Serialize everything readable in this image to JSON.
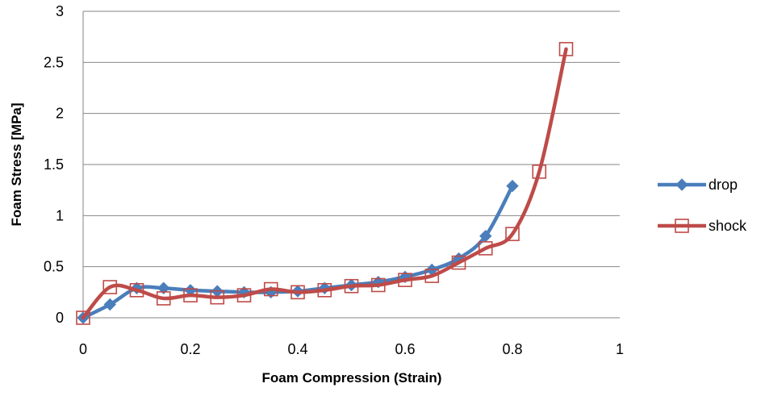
{
  "chart_data": {
    "type": "line",
    "title": "",
    "xlabel": "Foam Compression (Strain)",
    "ylabel": "Foam Stress [MPa]",
    "xlim": [
      0,
      1
    ],
    "ylim": [
      0,
      3
    ],
    "xticks": [
      "0",
      "0.2",
      "0.4",
      "0.6",
      "0.8",
      "1"
    ],
    "yticks": [
      "0",
      "0.5",
      "1",
      "1.5",
      "2",
      "2.5",
      "3"
    ],
    "grid": "horizontal",
    "legend_position": "right",
    "series": [
      {
        "name": "drop",
        "color": "#4a7ebb",
        "marker": "diamond",
        "x": [
          0,
          0.05,
          0.1,
          0.15,
          0.2,
          0.25,
          0.3,
          0.35,
          0.4,
          0.45,
          0.5,
          0.55,
          0.6,
          0.65,
          0.7,
          0.75,
          0.8
        ],
        "y": [
          0,
          0.13,
          0.29,
          0.29,
          0.27,
          0.26,
          0.25,
          0.25,
          0.26,
          0.29,
          0.32,
          0.35,
          0.4,
          0.47,
          0.58,
          0.8,
          1.29
        ]
      },
      {
        "name": "shock",
        "color": "#be4b48",
        "marker": "open-square",
        "x": [
          0,
          0.05,
          0.1,
          0.15,
          0.2,
          0.25,
          0.3,
          0.35,
          0.4,
          0.45,
          0.5,
          0.55,
          0.6,
          0.65,
          0.7,
          0.75,
          0.8,
          0.85,
          0.9
        ],
        "y": [
          0,
          0.3,
          0.27,
          0.19,
          0.22,
          0.2,
          0.22,
          0.28,
          0.25,
          0.27,
          0.31,
          0.32,
          0.37,
          0.41,
          0.54,
          0.68,
          0.82,
          1.43,
          2.63
        ]
      }
    ]
  }
}
